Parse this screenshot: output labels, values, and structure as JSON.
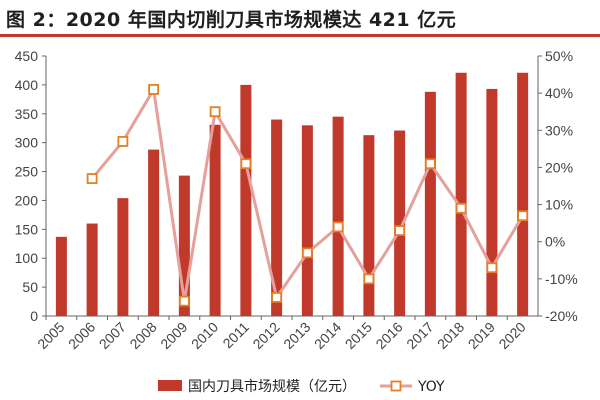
{
  "title": "图 2：2020 年国内切削刀具市场规模达 421 亿元",
  "chart_data": {
    "type": "bar",
    "categories": [
      "2005",
      "2006",
      "2007",
      "2008",
      "2009",
      "2010",
      "2011",
      "2012",
      "2013",
      "2014",
      "2015",
      "2016",
      "2017",
      "2018",
      "2019",
      "2020"
    ],
    "series": [
      {
        "name": "国内刀具市场规模（亿元）",
        "type": "bar",
        "axis": "left",
        "color": "#c0392b",
        "values": [
          137,
          160,
          204,
          288,
          243,
          331,
          400,
          340,
          330,
          345,
          313,
          321,
          388,
          421,
          393,
          421
        ]
      },
      {
        "name": "YOY",
        "type": "line",
        "axis": "right",
        "color": "#e6a09a",
        "marker_color": "#e67e22",
        "values": [
          null,
          17,
          27,
          41,
          -16,
          35,
          21,
          -15,
          -3,
          4,
          -10,
          3,
          21,
          9,
          -7,
          7
        ]
      }
    ],
    "y_left": {
      "min": 0,
      "max": 450,
      "ticks": [
        "0",
        "50",
        "100",
        "150",
        "200",
        "250",
        "300",
        "350",
        "400",
        "450"
      ]
    },
    "y_right": {
      "min": -20,
      "max": 50,
      "ticks": [
        "-20%",
        "-10%",
        "0%",
        "10%",
        "20%",
        "30%",
        "40%",
        "50%"
      ]
    },
    "grid": false,
    "legend_position": "bottom"
  },
  "legend": {
    "bar_label": "国内刀具市场规模（亿元）",
    "line_label": "YOY"
  }
}
